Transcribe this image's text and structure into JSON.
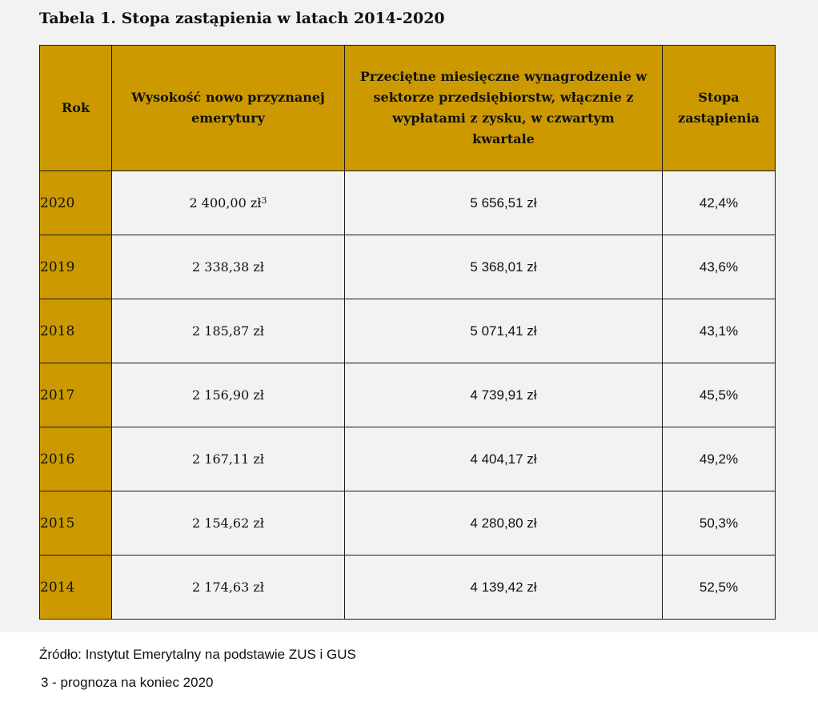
{
  "title": "Tabela 1. Stopa zastąpienia w latach 2014-2020",
  "table": {
    "headers": {
      "year": "Rok",
      "pension": "Wysokość nowo przyznanej emerytury",
      "wage": "Przeciętne miesięczne wynagrodzenie w sektorze przedsiębiorstw, włącznie z wypłatami z zysku, w czwartym kwartale",
      "rate": "Stopa zastąpienia"
    },
    "rows": [
      {
        "year": "2020",
        "pension": "2 400,00 zł",
        "pension_sup": "3",
        "wage": "5 656,51 zł",
        "rate": "42,4%"
      },
      {
        "year": "2019",
        "pension": "2 338,38 zł",
        "pension_sup": "",
        "wage": "5 368,01 zł",
        "rate": "43,6%"
      },
      {
        "year": "2018",
        "pension": "2 185,87 zł",
        "pension_sup": "",
        "wage": "5 071,41 zł",
        "rate": "43,1%"
      },
      {
        "year": "2017",
        "pension": "2 156,90 zł",
        "pension_sup": "",
        "wage": "4 739,91 zł",
        "rate": "45,5%"
      },
      {
        "year": "2016",
        "pension": "2 167,11 zł",
        "pension_sup": "",
        "wage": "4 404,17 zł",
        "rate": "49,2%"
      },
      {
        "year": "2015",
        "pension": "2 154,62 zł",
        "pension_sup": "",
        "wage": "4 280,80 zł",
        "rate": "50,3%"
      },
      {
        "year": "2014",
        "pension": "2 174,63 zł",
        "pension_sup": "",
        "wage": "4 139,42 zł",
        "rate": "52,5%"
      }
    ]
  },
  "source": "Źródło: Instytut Emerytalny na podstawie ZUS i GUS",
  "footnote": "3 - prognoza na koniec 2020",
  "colors": {
    "header_bg": "#cc9a00",
    "panel_bg": "#f2f2f2",
    "border": "#1a1a1a"
  }
}
